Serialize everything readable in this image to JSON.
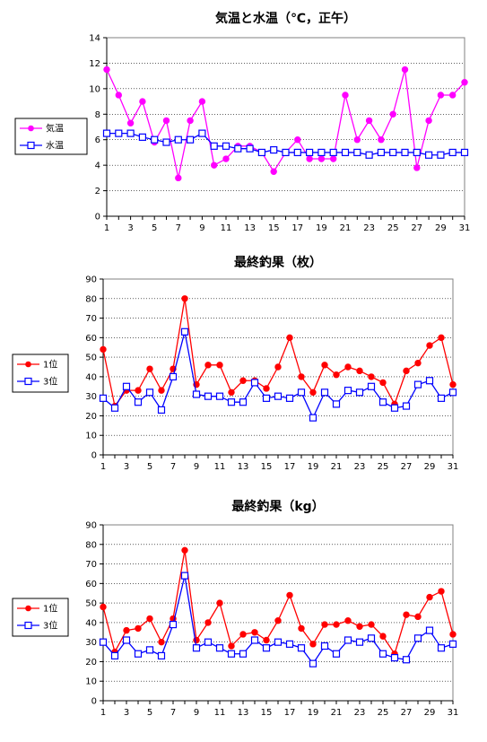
{
  "chart_data": [
    {
      "type": "line",
      "title": "気温と水温（℃，正午）",
      "x": [
        1,
        2,
        3,
        4,
        5,
        6,
        7,
        8,
        9,
        10,
        11,
        12,
        13,
        14,
        15,
        16,
        17,
        18,
        19,
        20,
        21,
        22,
        23,
        24,
        25,
        26,
        27,
        28,
        29,
        30,
        31
      ],
      "x_tick_labels": [
        "1",
        "3",
        "5",
        "7",
        "9",
        "11",
        "13",
        "15",
        "17",
        "19",
        "21",
        "23",
        "25",
        "27",
        "29",
        "31"
      ],
      "ylim": [
        0,
        14
      ],
      "y_ticks": [
        "0",
        "2",
        "4",
        "6",
        "8",
        "10",
        "12",
        "14"
      ],
      "grid": true,
      "legend_position": "left",
      "series": [
        {
          "name": "気温",
          "color": "#ff00ff",
          "marker": "filled-circle",
          "values": [
            11.5,
            9.5,
            7.3,
            9.0,
            5.8,
            7.5,
            3.0,
            7.5,
            9.0,
            4.0,
            4.5,
            5.5,
            5.5,
            5.0,
            3.5,
            5.0,
            6.0,
            4.5,
            4.5,
            4.5,
            9.5,
            6.0,
            7.5,
            6.0,
            8.0,
            11.5,
            3.8,
            7.5,
            9.5,
            9.5,
            10.5
          ]
        },
        {
          "name": "水温",
          "color": "#0000ff",
          "marker": "open-square",
          "values": [
            6.5,
            6.5,
            6.5,
            6.2,
            6.0,
            5.8,
            6.0,
            6.0,
            6.5,
            5.5,
            5.5,
            5.3,
            5.3,
            5.0,
            5.2,
            5.0,
            5.0,
            5.0,
            5.0,
            5.0,
            5.0,
            5.0,
            4.8,
            5.0,
            5.0,
            5.0,
            5.0,
            4.8,
            4.8,
            5.0,
            5.0
          ]
        }
      ]
    },
    {
      "type": "line",
      "title": "最終釣果（枚）",
      "x": [
        1,
        2,
        3,
        4,
        5,
        6,
        7,
        8,
        9,
        10,
        11,
        12,
        13,
        14,
        15,
        16,
        17,
        18,
        19,
        20,
        21,
        22,
        23,
        24,
        25,
        26,
        27,
        28,
        29,
        30,
        31
      ],
      "x_tick_labels": [
        "1",
        "3",
        "5",
        "7",
        "9",
        "11",
        "13",
        "15",
        "17",
        "19",
        "21",
        "23",
        "25",
        "27",
        "29",
        "31"
      ],
      "ylim": [
        0,
        90
      ],
      "y_ticks": [
        "0",
        "10",
        "20",
        "30",
        "40",
        "50",
        "60",
        "70",
        "80",
        "90"
      ],
      "grid": true,
      "legend_position": "left",
      "series": [
        {
          "name": "1位",
          "color": "#ff0000",
          "marker": "filled-circle",
          "values": [
            54,
            25,
            33,
            33,
            44,
            33,
            44,
            80,
            36,
            46,
            46,
            32,
            38,
            38,
            34,
            45,
            60,
            40,
            32,
            46,
            41,
            45,
            43,
            40,
            37,
            26,
            43,
            47,
            56,
            60,
            36
          ]
        },
        {
          "name": "3位",
          "color": "#0000ff",
          "marker": "open-square",
          "values": [
            29,
            24,
            35,
            27,
            32,
            23,
            40,
            63,
            31,
            30,
            30,
            27,
            27,
            37,
            29,
            30,
            29,
            32,
            19,
            32,
            26,
            33,
            32,
            35,
            27,
            24,
            25,
            36,
            38,
            29,
            32
          ]
        }
      ]
    },
    {
      "type": "line",
      "title": "最終釣果（kg）",
      "x": [
        1,
        2,
        3,
        4,
        5,
        6,
        7,
        8,
        9,
        10,
        11,
        12,
        13,
        14,
        15,
        16,
        17,
        18,
        19,
        20,
        21,
        22,
        23,
        24,
        25,
        26,
        27,
        28,
        29,
        30,
        31
      ],
      "x_tick_labels": [
        "1",
        "3",
        "5",
        "7",
        "9",
        "11",
        "13",
        "15",
        "17",
        "19",
        "21",
        "23",
        "25",
        "27",
        "29",
        "31"
      ],
      "ylim": [
        0,
        90
      ],
      "y_ticks": [
        "0",
        "10",
        "20",
        "30",
        "40",
        "50",
        "60",
        "70",
        "80",
        "90"
      ],
      "grid": true,
      "legend_position": "left",
      "series": [
        {
          "name": "1位",
          "color": "#ff0000",
          "marker": "filled-circle",
          "values": [
            48,
            25,
            36,
            37,
            42,
            30,
            42,
            77,
            31,
            40,
            50,
            28,
            34,
            35,
            31,
            41,
            54,
            37,
            29,
            39,
            39,
            41,
            38,
            39,
            33,
            24,
            44,
            43,
            53,
            56,
            34
          ]
        },
        {
          "name": "3位",
          "color": "#0000ff",
          "marker": "open-square",
          "values": [
            30,
            23,
            31,
            24,
            26,
            23,
            39,
            64,
            27,
            30,
            27,
            24,
            24,
            31,
            27,
            30,
            29,
            27,
            19,
            28,
            24,
            31,
            30,
            32,
            24,
            22,
            21,
            32,
            36,
            27,
            29
          ]
        }
      ]
    }
  ]
}
